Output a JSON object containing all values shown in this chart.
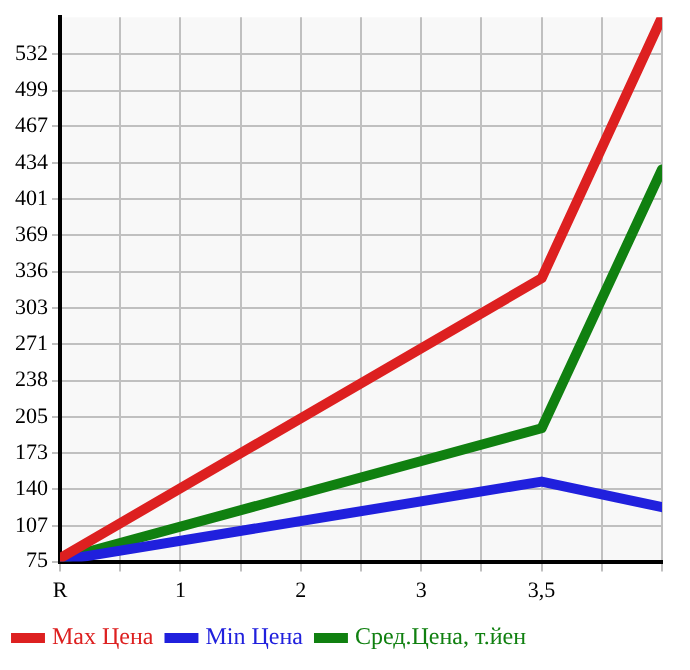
{
  "chart_data": {
    "type": "line",
    "categories": [
      "R",
      "1",
      "2",
      "3",
      "3,5",
      null
    ],
    "series": [
      {
        "name": "Max Цена",
        "color": "#dd2020",
        "values": [
          78,
          null,
          null,
          null,
          330,
          565
        ]
      },
      {
        "name": "Min Цена",
        "color": "#2020dd",
        "values": [
          76,
          null,
          null,
          null,
          147,
          124
        ]
      },
      {
        "name": "Сред.Цена, т.йен",
        "color": "#108010",
        "values": [
          77,
          null,
          null,
          null,
          195,
          428
        ]
      }
    ],
    "ylim": [
      75,
      565
    ],
    "yticks": [
      75,
      107,
      140,
      173,
      205,
      238,
      271,
      303,
      336,
      369,
      401,
      434,
      467,
      499,
      532
    ],
    "grid": true,
    "legend": "bottom",
    "marker": "none",
    "line_style": "solid"
  }
}
